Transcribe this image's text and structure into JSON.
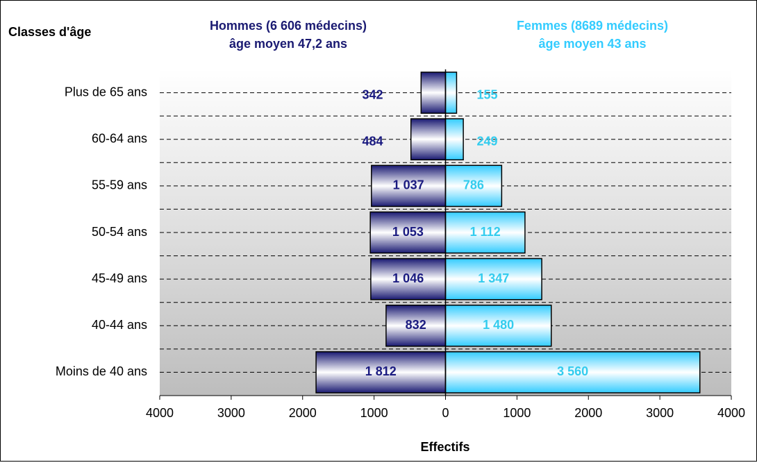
{
  "chart_data": {
    "type": "pyramid",
    "corner_label": "Classes d'âge",
    "xlabel": "Effectifs",
    "categories": [
      "Plus de 65 ans",
      "60-64 ans",
      "55-59 ans",
      "50-54 ans",
      "45-49 ans",
      "40-44 ans",
      "Moins de 40 ans"
    ],
    "series": [
      {
        "name": "Hommes (6 606 médecins)",
        "subtitle": "âge moyen 47,2 ans",
        "side": "left",
        "color": "#1a1a72",
        "values": [
          342,
          484,
          1037,
          1053,
          1046,
          832,
          1812
        ],
        "value_labels": [
          "342",
          "484",
          "1 037",
          "1 053",
          "1 046",
          "832",
          "1 812"
        ]
      },
      {
        "name": "Femmes (8689 médecins)",
        "subtitle": "âge moyen 43 ans",
        "side": "right",
        "color": "#33ccff",
        "values": [
          155,
          249,
          786,
          1112,
          1347,
          1480,
          3560
        ],
        "value_labels": [
          "155",
          "249",
          "786",
          "1 112",
          "1 347",
          "1 480",
          "3 560"
        ]
      }
    ],
    "xlim": [
      -4000,
      4000
    ],
    "xticks": [
      {
        "value": -4000,
        "label": "4000"
      },
      {
        "value": -3000,
        "label": "3000"
      },
      {
        "value": -2000,
        "label": "2000"
      },
      {
        "value": -1000,
        "label": "1000"
      },
      0,
      1000,
      2000,
      3000,
      4000
    ],
    "grid": true
  }
}
